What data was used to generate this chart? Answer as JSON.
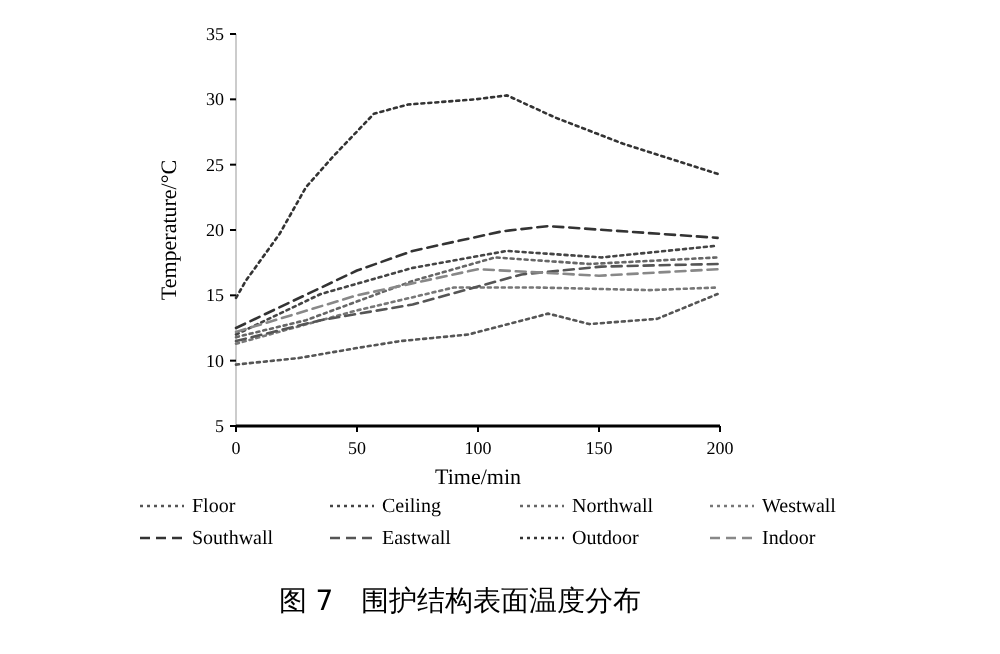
{
  "chart_data": {
    "type": "line",
    "title": "图 7　围护结构表面温度分布",
    "xlabel": "Time/min",
    "ylabel": "Temperature/°C",
    "xlim": [
      0,
      200
    ],
    "xticks": [
      0,
      50,
      100,
      150,
      200
    ],
    "ylim": [
      5,
      35
    ],
    "yticks": [
      5,
      10,
      15,
      20,
      25,
      30,
      35
    ],
    "grid": false,
    "legend": "bottom",
    "marker": "none",
    "series": [
      {
        "name": "Floor",
        "color": "#555555",
        "line_style": "dotted",
        "x": [
          0,
          26,
          51,
          68,
          96,
          129,
          146,
          174,
          199
        ],
        "values": [
          9.7,
          10.2,
          11,
          11.5,
          12,
          13.6,
          12.8,
          13.2,
          15.1
        ]
      },
      {
        "name": "Ceiling",
        "color": "#444444",
        "line_style": "dotted",
        "x": [
          0,
          35,
          73,
          112,
          151,
          199
        ],
        "values": [
          12,
          15.1,
          17.1,
          18.4,
          17.9,
          18.8
        ]
      },
      {
        "name": "Northwall",
        "color": "#666666",
        "line_style": "dotted",
        "x": [
          0,
          29,
          73,
          107,
          146,
          199
        ],
        "values": [
          11.8,
          13.1,
          16.1,
          17.9,
          17.4,
          17.9
        ]
      },
      {
        "name": "Westwall",
        "color": "#777777",
        "line_style": "dotted",
        "x": [
          0,
          49,
          90,
          124,
          171,
          199
        ],
        "values": [
          11.3,
          13.8,
          15.6,
          15.6,
          15.4,
          15.6
        ]
      },
      {
        "name": "Southwall",
        "color": "#333333",
        "line_style": "dashed",
        "x": [
          0,
          50,
          73,
          110,
          129,
          199
        ],
        "values": [
          12.5,
          16.9,
          18.4,
          19.9,
          20.3,
          19.4
        ]
      },
      {
        "name": "Eastwall",
        "color": "#555555",
        "line_style": "dashed",
        "x": [
          0,
          35,
          73,
          118,
          151,
          199
        ],
        "values": [
          11.5,
          13.1,
          14.3,
          16.6,
          17.2,
          17.4
        ]
      },
      {
        "name": "Outdoor",
        "color": "#333333",
        "line_style": "dotted",
        "x": [
          0,
          4,
          18,
          29,
          40,
          57,
          71,
          99,
          112,
          132,
          160,
          199
        ],
        "values": [
          14.8,
          16.1,
          19.7,
          23.3,
          25.6,
          28.9,
          29.6,
          30,
          30.3,
          28.6,
          26.6,
          24.3
        ]
      },
      {
        "name": "Indoor",
        "color": "#888888",
        "line_style": "dashed",
        "x": [
          0,
          50,
          100,
          150,
          199
        ],
        "values": [
          12.2,
          15,
          17,
          16.5,
          17
        ]
      }
    ]
  }
}
